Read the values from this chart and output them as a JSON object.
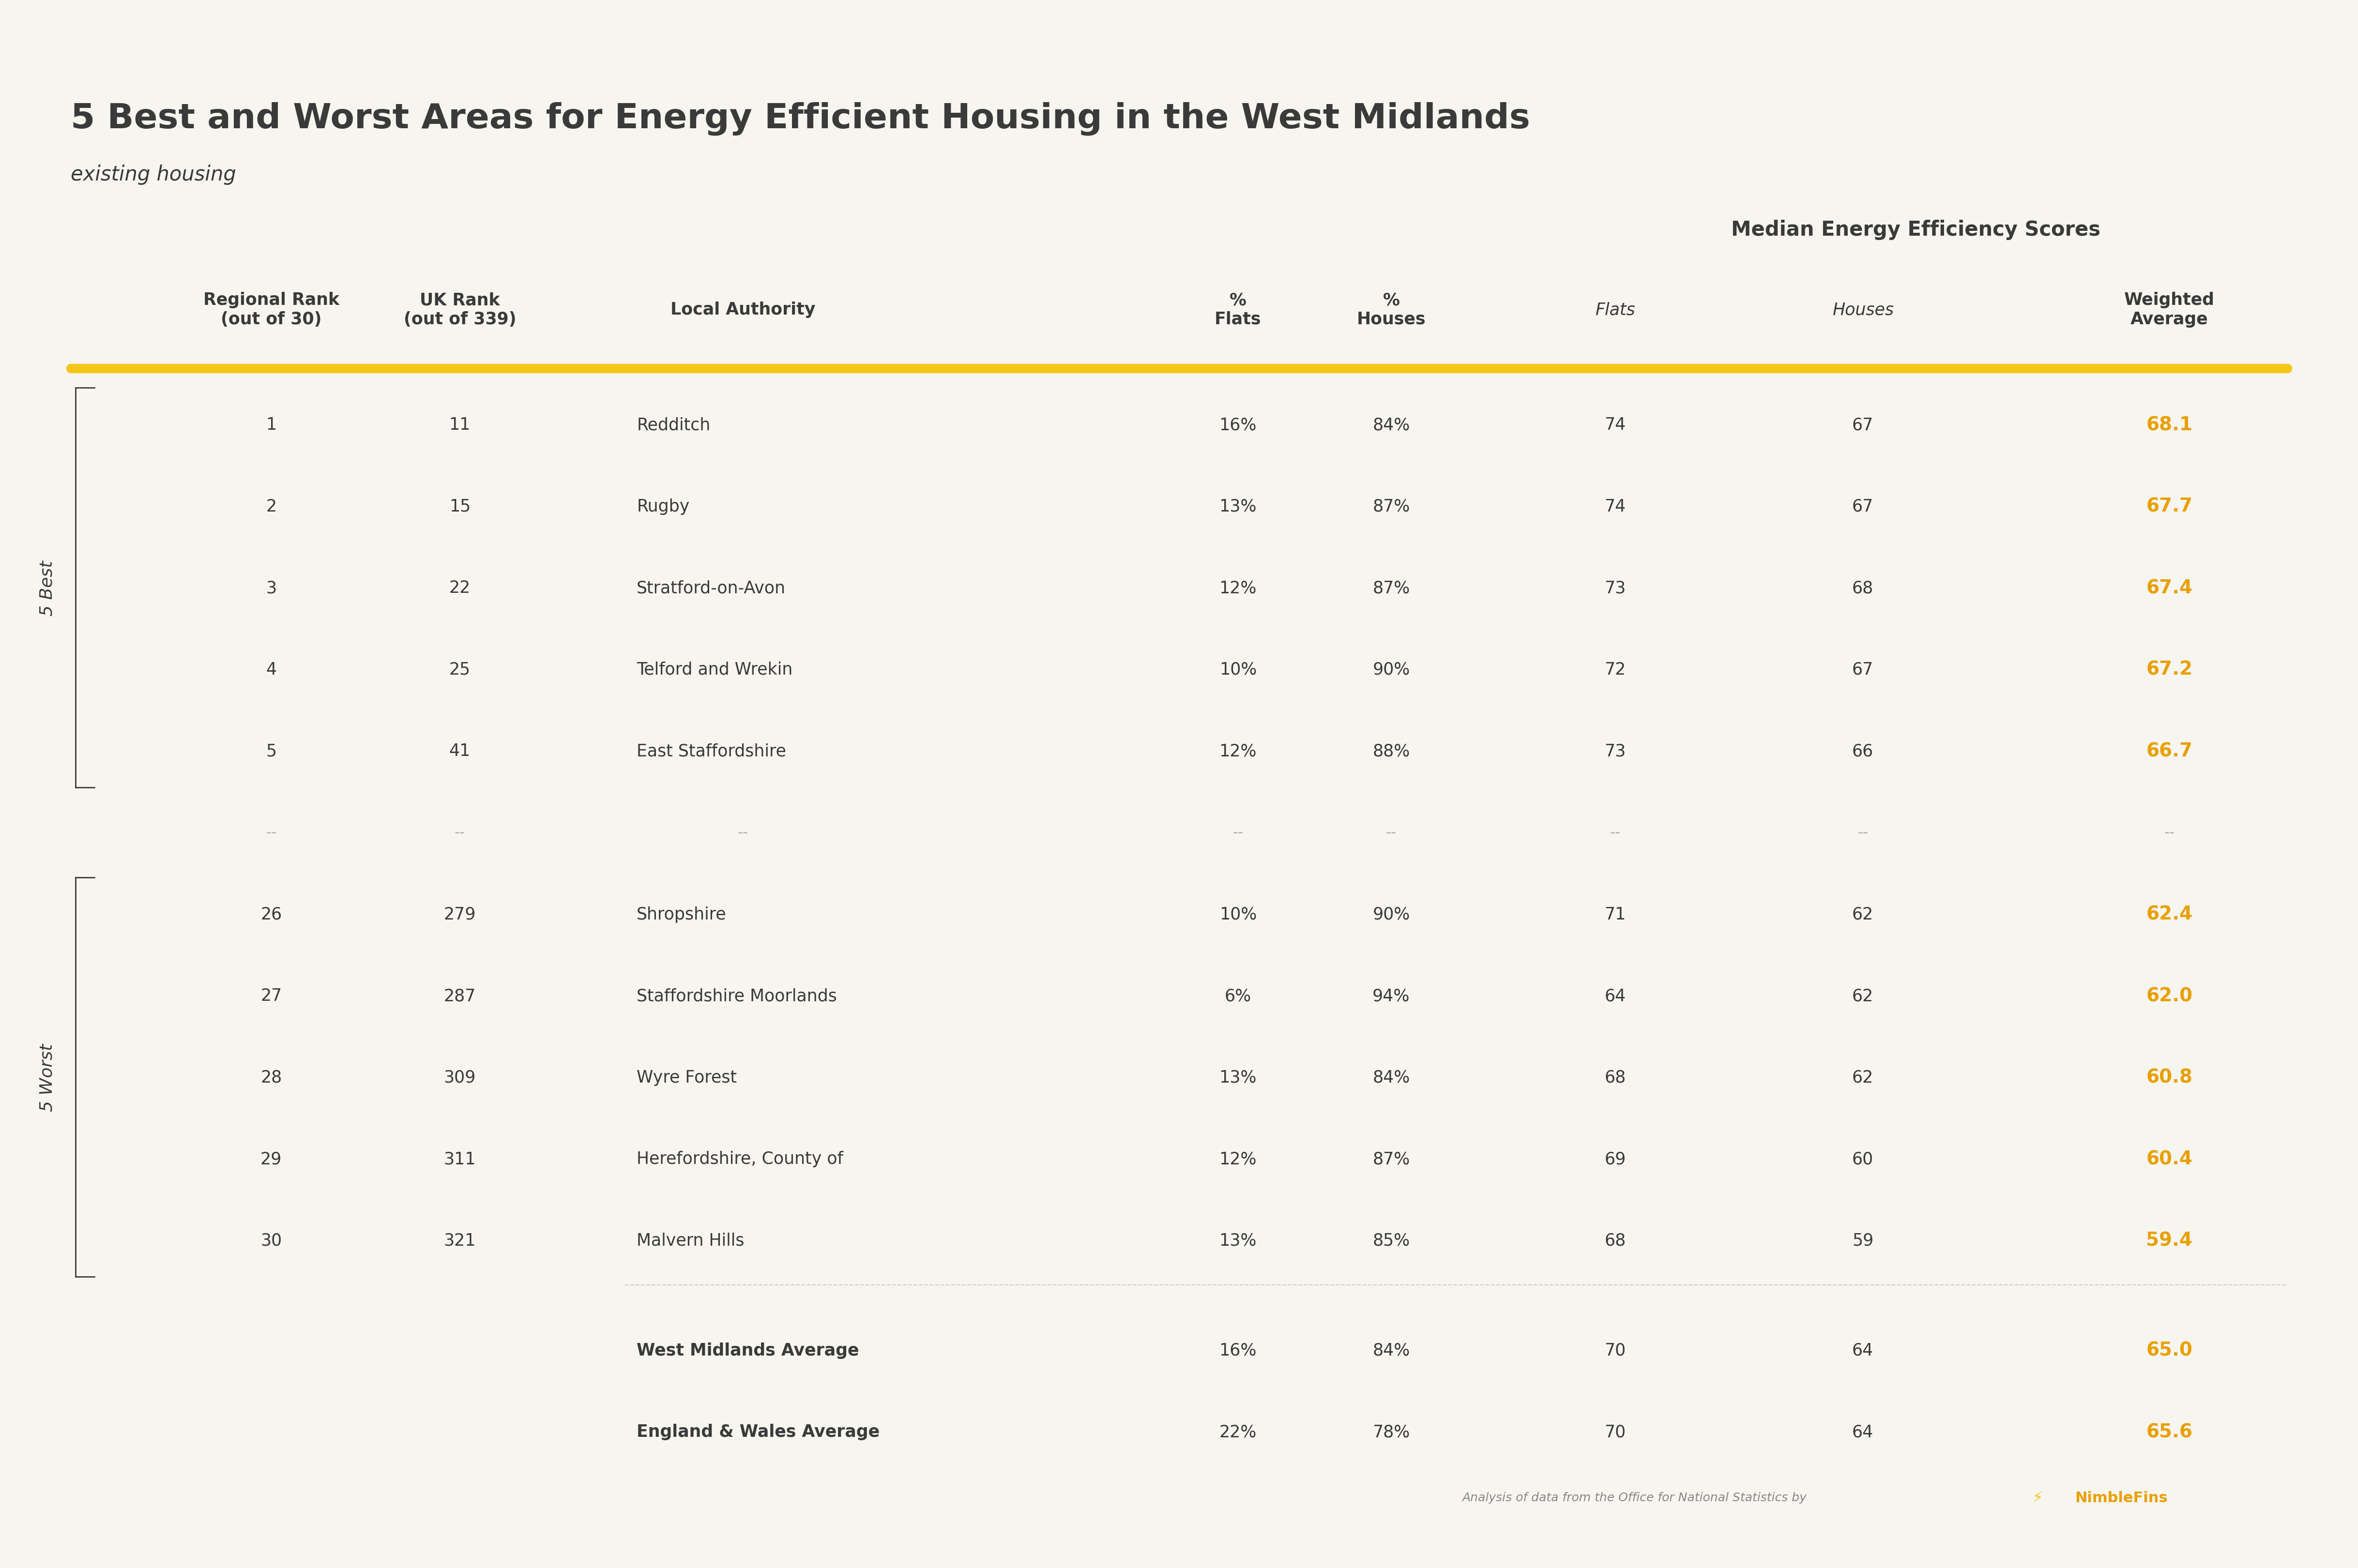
{
  "title": "5 Best and Worst Areas for Energy Efficient Housing in the West Midlands",
  "subtitle": "existing housing",
  "background_color": "#f7f5f0",
  "header_section_label": "Median Energy Efficiency Scores",
  "col_headers": [
    "Regional Rank\n(out of 30)",
    "UK Rank\n(out of 339)",
    "Local Authority",
    "%\nFlats",
    "%\nHouses",
    "Flats",
    "Houses",
    "Weighted\nAverage"
  ],
  "separator_color": "#f5c842",
  "rows": [
    {
      "reg_rank": "1",
      "uk_rank": "11",
      "local_auth": "Redditch",
      "pct_flats": "16%",
      "pct_houses": "84%",
      "flats": "74",
      "houses": "67",
      "weighted_avg": "68.1",
      "is_best": true,
      "is_worst": false,
      "is_avg": false
    },
    {
      "reg_rank": "2",
      "uk_rank": "15",
      "local_auth": "Rugby",
      "pct_flats": "13%",
      "pct_houses": "87%",
      "flats": "74",
      "houses": "67",
      "weighted_avg": "67.7",
      "is_best": true,
      "is_worst": false,
      "is_avg": false
    },
    {
      "reg_rank": "3",
      "uk_rank": "22",
      "local_auth": "Stratford-on-Avon",
      "pct_flats": "12%",
      "pct_houses": "87%",
      "flats": "73",
      "houses": "68",
      "weighted_avg": "67.4",
      "is_best": true,
      "is_worst": false,
      "is_avg": false
    },
    {
      "reg_rank": "4",
      "uk_rank": "25",
      "local_auth": "Telford and Wrekin",
      "pct_flats": "10%",
      "pct_houses": "90%",
      "flats": "72",
      "houses": "67",
      "weighted_avg": "67.2",
      "is_best": true,
      "is_worst": false,
      "is_avg": false
    },
    {
      "reg_rank": "5",
      "uk_rank": "41",
      "local_auth": "East Staffordshire",
      "pct_flats": "12%",
      "pct_houses": "88%",
      "flats": "73",
      "houses": "66",
      "weighted_avg": "66.7",
      "is_best": true,
      "is_worst": false,
      "is_avg": false
    },
    {
      "reg_rank": "--",
      "uk_rank": "--",
      "local_auth": "--",
      "pct_flats": "--",
      "pct_houses": "--",
      "flats": "--",
      "houses": "--",
      "weighted_avg": "--",
      "is_best": false,
      "is_worst": false,
      "is_avg": false
    },
    {
      "reg_rank": "26",
      "uk_rank": "279",
      "local_auth": "Shropshire",
      "pct_flats": "10%",
      "pct_houses": "90%",
      "flats": "71",
      "houses": "62",
      "weighted_avg": "62.4",
      "is_best": false,
      "is_worst": true,
      "is_avg": false
    },
    {
      "reg_rank": "27",
      "uk_rank": "287",
      "local_auth": "Staffordshire Moorlands",
      "pct_flats": "6%",
      "pct_houses": "94%",
      "flats": "64",
      "houses": "62",
      "weighted_avg": "62.0",
      "is_best": false,
      "is_worst": true,
      "is_avg": false
    },
    {
      "reg_rank": "28",
      "uk_rank": "309",
      "local_auth": "Wyre Forest",
      "pct_flats": "13%",
      "pct_houses": "84%",
      "flats": "68",
      "houses": "62",
      "weighted_avg": "60.8",
      "is_best": false,
      "is_worst": true,
      "is_avg": false
    },
    {
      "reg_rank": "29",
      "uk_rank": "311",
      "local_auth": "Herefordshire, County of",
      "pct_flats": "12%",
      "pct_houses": "87%",
      "flats": "69",
      "houses": "60",
      "weighted_avg": "60.4",
      "is_best": false,
      "is_worst": true,
      "is_avg": false
    },
    {
      "reg_rank": "30",
      "uk_rank": "321",
      "local_auth": "Malvern Hills",
      "pct_flats": "13%",
      "pct_houses": "85%",
      "flats": "68",
      "houses": "59",
      "weighted_avg": "59.4",
      "is_best": false,
      "is_worst": true,
      "is_avg": false
    },
    {
      "reg_rank": "",
      "uk_rank": "",
      "local_auth": "West Midlands Average",
      "pct_flats": "16%",
      "pct_houses": "84%",
      "flats": "70",
      "houses": "64",
      "weighted_avg": "65.0",
      "is_best": false,
      "is_worst": false,
      "is_avg": true
    },
    {
      "reg_rank": "",
      "uk_rank": "",
      "local_auth": "England & Wales Average",
      "pct_flats": "22%",
      "pct_houses": "78%",
      "flats": "70",
      "houses": "64",
      "weighted_avg": "65.6",
      "is_best": false,
      "is_worst": false,
      "is_avg": true
    }
  ],
  "best_label": "5 Best",
  "worst_label": "5 Worst",
  "gold_color": "#f5c518",
  "dark_gold_color": "#e8a000",
  "text_color": "#3a3a3a",
  "footer_text": "Analysis of data from the Office for National Statistics by",
  "nimblefins_text": "NimbleFins"
}
